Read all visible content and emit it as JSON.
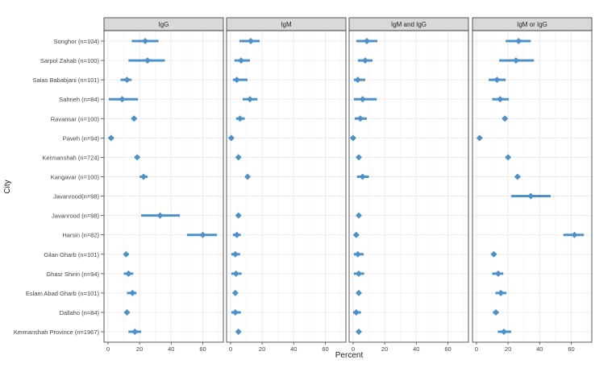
{
  "chart_data": {
    "type": "forest",
    "xlabel": "Percent",
    "ylabel": "City",
    "xlim": [
      -2.5,
      73
    ],
    "xticks": [
      0,
      20,
      40,
      60
    ],
    "grid": true,
    "color": "#4e90c9",
    "categories": [
      "Songhor (n=104)",
      "Sarpol Zahab (n=100)",
      "Salas Bababjani (n=101)",
      "Sahneh (n=84)",
      "Ravansar (n=100)",
      "Paveh (n=94)",
      "Kermanshah (n=724)",
      "Kangavar (n=100)",
      "Javanrood(n=98)",
      "Javanrood (n=98)",
      "Harsin (n=82)",
      "Gilan Gharb (n=101)",
      "Ghasr Shirin (n=94)",
      "Eslam Abad Gharb (n=101)",
      "Dallaho (n=84)",
      "Kermanshah Province (n=1967)"
    ],
    "panels": [
      {
        "name": "IgG",
        "values": [
          [
            23.6,
            15,
            32
          ],
          [
            25,
            13,
            36
          ],
          [
            12,
            8,
            15
          ],
          [
            9,
            0.5,
            19
          ],
          [
            16.5,
            15,
            18
          ],
          [
            2,
            0.5,
            3.5
          ],
          [
            18.5,
            17,
            20
          ],
          [
            22.5,
            20,
            25
          ],
          null,
          [
            33,
            21,
            45.5
          ],
          [
            60,
            50,
            69
          ],
          [
            11.5,
            10,
            13
          ],
          [
            13,
            10,
            16
          ],
          [
            15.5,
            12,
            18
          ],
          [
            12,
            10.5,
            13.5
          ],
          [
            17,
            13,
            21
          ]
        ]
      },
      {
        "name": "IgM",
        "values": [
          [
            12.8,
            5.6,
            18.5
          ],
          [
            6.7,
            2.5,
            12.3
          ],
          [
            4,
            1.5,
            10.8
          ],
          [
            12.3,
            7.7,
            17
          ],
          [
            6,
            3.5,
            9
          ],
          [
            0.5,
            0,
            1.5
          ],
          [
            5,
            4,
            6
          ],
          [
            10.8,
            9.5,
            12
          ],
          null,
          [
            5,
            4,
            6
          ],
          [
            4,
            1.5,
            6.5
          ],
          [
            3,
            0.5,
            6
          ],
          [
            3.5,
            0.5,
            7
          ],
          [
            3,
            2,
            4
          ],
          [
            3,
            0.5,
            6.5
          ],
          [
            5,
            4,
            6
          ]
        ]
      },
      {
        "name": "IgM and IgG",
        "values": [
          [
            8.7,
            2,
            15.4
          ],
          [
            7.7,
            3,
            12.3
          ],
          [
            3,
            0.5,
            7.7
          ],
          [
            6,
            0.5,
            15
          ],
          [
            4.6,
            1,
            8.7
          ],
          [
            0,
            0,
            1
          ],
          [
            3.6,
            2.5,
            4.7
          ],
          [
            6,
            2.5,
            10
          ],
          null,
          [
            3.6,
            2.5,
            4.7
          ],
          [
            2,
            0.5,
            3.5
          ],
          [
            3,
            0.5,
            6.7
          ],
          [
            3.6,
            0.5,
            7
          ],
          [
            3.6,
            2.5,
            4.7
          ],
          [
            2,
            0,
            5
          ],
          [
            3.6,
            2.5,
            4.7
          ]
        ]
      },
      {
        "name": "IgM or IgG",
        "values": [
          [
            26.7,
            18.5,
            34.4
          ],
          [
            25,
            14.4,
            36.4
          ],
          [
            13,
            7.7,
            18.5
          ],
          [
            15,
            10,
            20.5
          ],
          [
            18,
            16.5,
            19.5
          ],
          [
            2,
            0.5,
            3.5
          ],
          [
            20,
            18.5,
            21.5
          ],
          [
            26,
            24.5,
            27.5
          ],
          [
            34.4,
            22,
            47
          ],
          null,
          [
            62,
            55,
            68
          ],
          [
            11,
            9.5,
            12.5
          ],
          [
            13.8,
            10,
            17
          ],
          [
            15.4,
            12,
            19
          ],
          [
            12.3,
            10.5,
            14
          ],
          [
            17.4,
            13.5,
            22
          ]
        ]
      }
    ]
  }
}
